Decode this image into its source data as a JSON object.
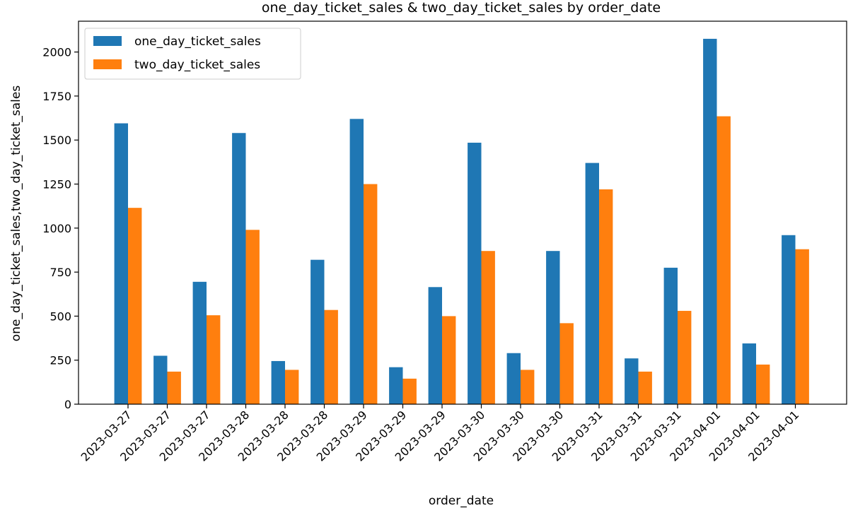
{
  "chart_data": {
    "type": "bar",
    "title": "one_day_ticket_sales & two_day_ticket_sales by order_date",
    "xlabel": "order_date",
    "ylabel": "one_day_ticket_sales,two_day_ticket_sales",
    "categories": [
      "2023-03-27",
      "2023-03-27",
      "2023-03-27",
      "2023-03-28",
      "2023-03-28",
      "2023-03-28",
      "2023-03-29",
      "2023-03-29",
      "2023-03-29",
      "2023-03-30",
      "2023-03-30",
      "2023-03-30",
      "2023-03-31",
      "2023-03-31",
      "2023-03-31",
      "2023-04-01",
      "2023-04-01",
      "2023-04-01"
    ],
    "series": [
      {
        "name": "one_day_ticket_sales",
        "color": "#1f77b4",
        "values": [
          1595,
          275,
          695,
          1540,
          245,
          820,
          1620,
          210,
          665,
          1485,
          290,
          870,
          1370,
          260,
          775,
          2075,
          345,
          960
        ]
      },
      {
        "name": "two_day_ticket_sales",
        "color": "#ff7f0e",
        "values": [
          1115,
          185,
          505,
          990,
          195,
          535,
          1250,
          145,
          500,
          870,
          195,
          460,
          1220,
          185,
          530,
          1635,
          225,
          880
        ]
      }
    ],
    "ylim": [
      0,
      2175
    ],
    "yticks": [
      0,
      250,
      500,
      750,
      1000,
      1250,
      1500,
      1750,
      2000
    ],
    "grid": false,
    "legend_position": "top-left"
  }
}
